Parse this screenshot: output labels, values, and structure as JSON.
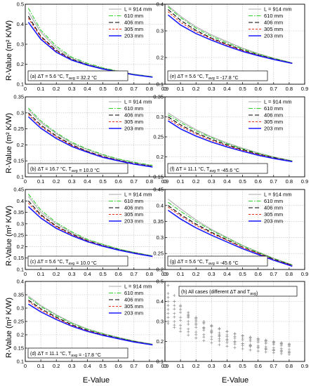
{
  "figure": {
    "ylabel": "R-Value (m² K/W)",
    "xlabel": "E-Value",
    "colors": {
      "L914": "#aaaaaa",
      "L610": "#33cc33",
      "L406": "#000000",
      "L305": "#e8321e",
      "L203": "#1a1aff",
      "all_cases": "#999999"
    }
  },
  "chart_data": [
    {
      "type": "line",
      "panel": "a",
      "annotation": "(a) ΔT = 5.6 °C, T_avg = 32.2 °C",
      "xlim": [
        0,
        0.9
      ],
      "ylim": [
        0.1,
        0.5
      ],
      "xticks": [
        "0",
        "0.1",
        "0.2",
        "0.3",
        "0.4",
        "0.5",
        "0.6",
        "0.7",
        "0.8",
        "0.9"
      ],
      "yticks": [
        "0.1",
        "0.2",
        "0.3",
        "0.4",
        "0.5"
      ],
      "grid": true,
      "legend": "top-right",
      "x": [
        0.02,
        0.1,
        0.2,
        0.3,
        0.4,
        0.5,
        0.6,
        0.7,
        0.82
      ],
      "series": [
        {
          "name": "L = 914 mm",
          "values": [
            0.46,
            0.36,
            0.28,
            0.23,
            0.2,
            0.18,
            0.165,
            0.15,
            0.138
          ]
        },
        {
          "name": "610 mm",
          "values": [
            0.48,
            0.37,
            0.29,
            0.235,
            0.205,
            0.182,
            0.165,
            0.15,
            0.138
          ]
        },
        {
          "name": "406 mm",
          "values": [
            0.44,
            0.34,
            0.27,
            0.225,
            0.198,
            0.178,
            0.162,
            0.148,
            0.136
          ]
        },
        {
          "name": "305 mm",
          "values": [
            0.43,
            0.335,
            0.265,
            0.222,
            0.196,
            0.177,
            0.162,
            0.148,
            0.136
          ]
        },
        {
          "name": "203 mm",
          "values": [
            0.41,
            0.325,
            0.26,
            0.22,
            0.195,
            0.176,
            0.161,
            0.147,
            0.135
          ]
        }
      ]
    },
    {
      "type": "line",
      "panel": "e",
      "annotation": "(e) ΔT = 5.6 °C, T_avg = -17.8 °C",
      "xlim": [
        0,
        0.9
      ],
      "ylim": [
        0.1,
        0.4
      ],
      "xticks": [
        "0",
        "0.1",
        "0.2",
        "0.3",
        "0.4",
        "0.5",
        "0.6",
        "0.7",
        "0.8",
        "0.9"
      ],
      "yticks": [
        "0.1",
        "0.2",
        "0.3",
        "0.4"
      ],
      "grid": true,
      "legend": "top-right",
      "x": [
        0.02,
        0.1,
        0.2,
        0.3,
        0.4,
        0.5,
        0.6,
        0.7,
        0.82
      ],
      "series": [
        {
          "name": "L = 914 mm",
          "values": [
            0.395,
            0.355,
            0.315,
            0.285,
            0.26,
            0.235,
            0.215,
            0.198,
            0.18
          ]
        },
        {
          "name": "610 mm",
          "values": [
            0.39,
            0.35,
            0.31,
            0.28,
            0.255,
            0.232,
            0.213,
            0.197,
            0.18
          ]
        },
        {
          "name": "406 mm",
          "values": [
            0.38,
            0.34,
            0.302,
            0.273,
            0.25,
            0.228,
            0.21,
            0.195,
            0.179
          ]
        },
        {
          "name": "305 mm",
          "values": [
            0.372,
            0.332,
            0.297,
            0.27,
            0.247,
            0.226,
            0.209,
            0.194,
            0.179
          ]
        },
        {
          "name": "203 mm",
          "values": [
            0.36,
            0.322,
            0.29,
            0.265,
            0.243,
            0.223,
            0.207,
            0.193,
            0.178
          ]
        }
      ]
    },
    {
      "type": "line",
      "panel": "b",
      "annotation": "(b) ΔT = 16.7 °C, T_avg = 10.0 °C",
      "xlim": [
        0,
        0.9
      ],
      "ylim": [
        0.1,
        0.35
      ],
      "xticks": [
        "0",
        "0.1",
        "0.2",
        "0.3",
        "0.4",
        "0.5",
        "0.6",
        "0.7",
        "0.8",
        "0.9"
      ],
      "yticks": [
        "0.1",
        "0.15",
        "0.2",
        "0.25",
        "0.3",
        "0.35"
      ],
      "grid": true,
      "legend": "top-right",
      "x": [
        0.02,
        0.1,
        0.2,
        0.3,
        0.4,
        0.5,
        0.6,
        0.7,
        0.82
      ],
      "series": [
        {
          "name": "L = 914 mm",
          "values": [
            0.31,
            0.27,
            0.235,
            0.205,
            0.185,
            0.168,
            0.155,
            0.145,
            0.135
          ]
        },
        {
          "name": "610 mm",
          "values": [
            0.315,
            0.275,
            0.238,
            0.208,
            0.187,
            0.17,
            0.156,
            0.146,
            0.136
          ]
        },
        {
          "name": "406 mm",
          "values": [
            0.3,
            0.262,
            0.228,
            0.2,
            0.18,
            0.164,
            0.152,
            0.142,
            0.133
          ]
        },
        {
          "name": "305 mm",
          "values": [
            0.295,
            0.258,
            0.225,
            0.198,
            0.179,
            0.163,
            0.151,
            0.141,
            0.132
          ]
        },
        {
          "name": "203 mm",
          "values": [
            0.288,
            0.252,
            0.22,
            0.195,
            0.177,
            0.161,
            0.15,
            0.14,
            0.131
          ]
        }
      ]
    },
    {
      "type": "line",
      "panel": "f",
      "annotation": "(f) ΔT = 11.1 °C, T_avg = -45.6 °C",
      "xlim": [
        0,
        0.9
      ],
      "ylim": [
        0.15,
        0.35
      ],
      "xticks": [
        "0",
        "0.1",
        "0.2",
        "0.3",
        "0.4",
        "0.5",
        "0.6",
        "0.7",
        "0.8",
        "0.9"
      ],
      "yticks": [
        "0.15",
        "0.2",
        "0.25",
        "0.3",
        "0.35"
      ],
      "grid": true,
      "legend": "top-right",
      "x": [
        0.02,
        0.1,
        0.2,
        0.3,
        0.4,
        0.5,
        0.6,
        0.7,
        0.82
      ],
      "series": [
        {
          "name": "L = 914 mm",
          "values": [
            0.31,
            0.29,
            0.268,
            0.25,
            0.235,
            0.222,
            0.21,
            0.2,
            0.19
          ]
        },
        {
          "name": "610 mm",
          "values": [
            0.305,
            0.286,
            0.265,
            0.248,
            0.233,
            0.22,
            0.209,
            0.199,
            0.19
          ]
        },
        {
          "name": "406 mm",
          "values": [
            0.3,
            0.28,
            0.26,
            0.244,
            0.23,
            0.218,
            0.207,
            0.198,
            0.189
          ]
        },
        {
          "name": "305 mm",
          "values": [
            0.295,
            0.276,
            0.257,
            0.241,
            0.228,
            0.216,
            0.206,
            0.197,
            0.189
          ]
        },
        {
          "name": "203 mm",
          "values": [
            0.29,
            0.27,
            0.252,
            0.237,
            0.225,
            0.214,
            0.204,
            0.196,
            0.188
          ]
        }
      ]
    },
    {
      "type": "line",
      "panel": "c",
      "annotation": "(c) ΔT = 5.6 °C, T_avg = 10.0 °C",
      "xlim": [
        0,
        0.9
      ],
      "ylim": [
        0.1,
        0.45
      ],
      "xticks": [
        "0",
        "0.1",
        "0.2",
        "0.3",
        "0.4",
        "0.5",
        "0.6",
        "0.7",
        "0.8",
        "0.9"
      ],
      "yticks": [
        "0.1",
        "0.15",
        "0.2",
        "0.25",
        "0.3",
        "0.35",
        "0.4",
        "0.45"
      ],
      "grid": true,
      "legend": "top-right",
      "x": [
        0.02,
        0.1,
        0.2,
        0.3,
        0.4,
        0.5,
        0.6,
        0.7,
        0.82
      ],
      "series": [
        {
          "name": "L = 914 mm",
          "values": [
            0.42,
            0.35,
            0.3,
            0.26,
            0.23,
            0.21,
            0.19,
            0.175,
            0.16
          ]
        },
        {
          "name": "610 mm",
          "values": [
            0.43,
            0.36,
            0.305,
            0.265,
            0.232,
            0.21,
            0.19,
            0.175,
            0.16
          ]
        },
        {
          "name": "406 mm",
          "values": [
            0.4,
            0.34,
            0.29,
            0.255,
            0.226,
            0.205,
            0.187,
            0.173,
            0.158
          ]
        },
        {
          "name": "305 mm",
          "values": [
            0.39,
            0.335,
            0.287,
            0.252,
            0.225,
            0.204,
            0.186,
            0.172,
            0.158
          ]
        },
        {
          "name": "203 mm",
          "values": [
            0.375,
            0.325,
            0.28,
            0.248,
            0.222,
            0.202,
            0.185,
            0.171,
            0.157
          ]
        }
      ]
    },
    {
      "type": "line",
      "panel": "g",
      "annotation": "(g) ΔT = 5.6 °C, T_avg = -45.6 °C",
      "xlim": [
        0,
        0.9
      ],
      "ylim": [
        0.2,
        0.45
      ],
      "xticks": [
        "0",
        "0.1",
        "0.2",
        "0.3",
        "0.4",
        "0.5",
        "0.6",
        "0.7",
        "0.8",
        "0.9"
      ],
      "yticks": [
        "0.2",
        "0.25",
        "0.3",
        "0.35",
        "0.4",
        "0.45"
      ],
      "grid": true,
      "legend": "top-right",
      "x": [
        0.02,
        0.1,
        0.2,
        0.3,
        0.4,
        0.5,
        0.6,
        0.7,
        0.82
      ],
      "series": [
        {
          "name": "L = 914 mm",
          "values": [
            0.42,
            0.39,
            0.355,
            0.325,
            0.3,
            0.275,
            0.255,
            0.235,
            0.215
          ]
        },
        {
          "name": "610 mm",
          "values": [
            0.41,
            0.382,
            0.35,
            0.322,
            0.298,
            0.274,
            0.254,
            0.234,
            0.214
          ]
        },
        {
          "name": "406 mm",
          "values": [
            0.4,
            0.372,
            0.342,
            0.316,
            0.293,
            0.27,
            0.251,
            0.232,
            0.213
          ]
        },
        {
          "name": "305 mm",
          "values": [
            0.395,
            0.367,
            0.338,
            0.313,
            0.291,
            0.269,
            0.25,
            0.231,
            0.212
          ]
        },
        {
          "name": "203 mm",
          "values": [
            0.385,
            0.358,
            0.33,
            0.307,
            0.286,
            0.265,
            0.247,
            0.229,
            0.21
          ]
        }
      ]
    },
    {
      "type": "line",
      "panel": "d",
      "annotation": "(d) ΔT = 11.1 °C, T_avg = -17.8 °C",
      "xlim": [
        0,
        0.9
      ],
      "ylim": [
        0.1,
        0.4
      ],
      "xticks": [
        "0",
        "0.1",
        "0.2",
        "0.3",
        "0.4",
        "0.5",
        "0.6",
        "0.7",
        "0.8",
        "0.9"
      ],
      "yticks": [
        "0.1",
        "0.15",
        "0.2",
        "0.25",
        "0.3",
        "0.35",
        "0.4"
      ],
      "grid": true,
      "legend": "top-right",
      "x": [
        0.02,
        0.1,
        0.2,
        0.3,
        0.4,
        0.5,
        0.6,
        0.7,
        0.82
      ],
      "series": [
        {
          "name": "L = 914 mm",
          "values": [
            0.345,
            0.31,
            0.275,
            0.245,
            0.222,
            0.205,
            0.19,
            0.177,
            0.165
          ]
        },
        {
          "name": "610 mm",
          "values": [
            0.34,
            0.306,
            0.272,
            0.243,
            0.221,
            0.204,
            0.189,
            0.176,
            0.164
          ]
        },
        {
          "name": "406 mm",
          "values": [
            0.33,
            0.298,
            0.266,
            0.238,
            0.217,
            0.201,
            0.187,
            0.175,
            0.163
          ]
        },
        {
          "name": "305 mm",
          "values": [
            0.325,
            0.293,
            0.262,
            0.235,
            0.215,
            0.2,
            0.186,
            0.174,
            0.163
          ]
        },
        {
          "name": "203 mm",
          "values": [
            0.315,
            0.286,
            0.257,
            0.232,
            0.213,
            0.198,
            0.185,
            0.173,
            0.162
          ]
        }
      ]
    },
    {
      "type": "scatter",
      "panel": "h",
      "annotation": "(h) All cases (different ΔT and T_avg)",
      "xlim": [
        0,
        0.9
      ],
      "ylim": [
        0.1,
        0.5
      ],
      "xticks": [
        "0",
        "0.1",
        "0.2",
        "0.3",
        "0.4",
        "0.5",
        "0.6",
        "0.7",
        "0.8",
        "0.9"
      ],
      "yticks": [
        "0.1",
        "0.2",
        "0.3",
        "0.4",
        "0.5"
      ],
      "grid": true,
      "marker": "+",
      "x": [
        0.02,
        0.06,
        0.1,
        0.15,
        0.2,
        0.25,
        0.3,
        0.35,
        0.4,
        0.45,
        0.5,
        0.55,
        0.6,
        0.65,
        0.7,
        0.75,
        0.8
      ],
      "series": [
        {
          "values": [
            0.48,
            0.43,
            0.38,
            0.33,
            0.3,
            0.27,
            0.25,
            0.23,
            0.21,
            0.2,
            0.19,
            0.18,
            0.17,
            0.16,
            0.155,
            0.15,
            0.145
          ]
        },
        {
          "values": [
            0.44,
            0.4,
            0.36,
            0.32,
            0.29,
            0.265,
            0.245,
            0.225,
            0.21,
            0.198,
            0.188,
            0.178,
            0.17,
            0.162,
            0.155,
            0.149,
            0.143
          ]
        },
        {
          "values": [
            0.42,
            0.4,
            0.375,
            0.345,
            0.32,
            0.3,
            0.28,
            0.265,
            0.25,
            0.238,
            0.228,
            0.218,
            0.21,
            0.203,
            0.196,
            0.19,
            0.184
          ]
        },
        {
          "values": [
            0.4,
            0.38,
            0.36,
            0.335,
            0.315,
            0.295,
            0.278,
            0.263,
            0.25,
            0.238,
            0.227,
            0.218,
            0.21,
            0.203,
            0.196,
            0.19,
            0.184
          ]
        },
        {
          "values": [
            0.38,
            0.362,
            0.345,
            0.325,
            0.307,
            0.29,
            0.275,
            0.262,
            0.25,
            0.239,
            0.23,
            0.222,
            0.214,
            0.207,
            0.2,
            0.194,
            0.188
          ]
        },
        {
          "values": [
            0.36,
            0.34,
            0.32,
            0.3,
            0.283,
            0.268,
            0.255,
            0.243,
            0.233,
            0.224,
            0.216,
            0.209,
            0.203,
            0.197,
            0.192,
            0.187,
            0.182
          ]
        },
        {
          "values": [
            0.34,
            0.322,
            0.305,
            0.286,
            0.27,
            0.256,
            0.244,
            0.233,
            0.224,
            0.216,
            0.208,
            0.202,
            0.196,
            0.19,
            0.185,
            0.18,
            0.176
          ]
        },
        {
          "values": [
            0.32,
            0.3,
            0.28,
            0.262,
            0.247,
            0.234,
            0.223,
            0.213,
            0.205,
            0.197,
            0.19,
            0.184,
            0.178,
            0.173,
            0.168,
            0.164,
            0.16
          ]
        },
        {
          "values": [
            0.3,
            0.282,
            0.265,
            0.248,
            0.234,
            0.222,
            0.211,
            0.202,
            0.194,
            0.187,
            0.18,
            0.174,
            0.169,
            0.164,
            0.159,
            0.155,
            0.151
          ]
        },
        {
          "values": [
            0.29,
            0.27,
            0.25,
            0.232,
            0.217,
            0.204,
            0.193,
            0.184,
            0.176,
            0.169,
            0.163,
            0.157,
            0.152,
            0.147,
            0.143,
            0.139,
            0.135
          ]
        }
      ]
    }
  ]
}
